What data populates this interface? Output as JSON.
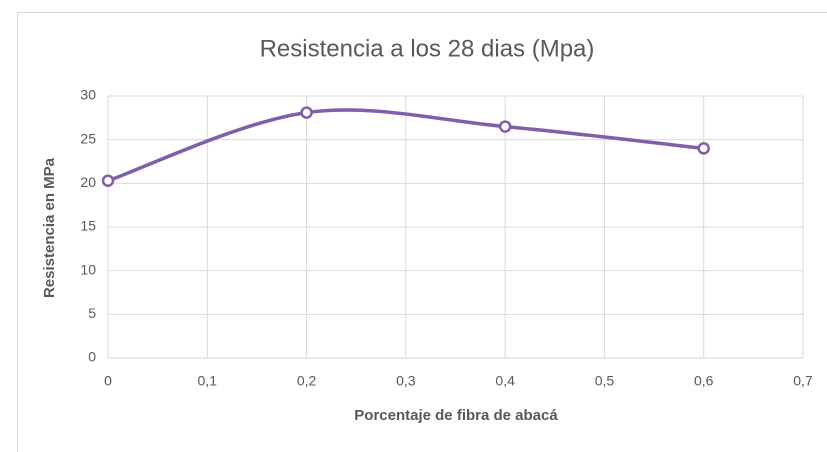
{
  "chart_data": {
    "type": "line",
    "title": "Resistencia a los 28 dias (Mpa)",
    "x_label": "Porcentaje de fibra de abacá",
    "y_label": "Resistencia en MPa",
    "x": [
      0,
      0.2,
      0.4,
      0.6
    ],
    "series": [
      {
        "name": "Resistencia",
        "color": "#7f5fa8",
        "values": [
          20.3,
          28.1,
          26.5,
          24.0
        ]
      }
    ],
    "xlim": [
      0,
      0.7
    ],
    "xticks": [
      0,
      {
        "value": 0.1,
        "label": "0,1"
      },
      {
        "value": 0.2,
        "label": "0,2"
      },
      {
        "value": 0.3,
        "label": "0,3"
      },
      {
        "value": 0.4,
        "label": "0,4"
      },
      {
        "value": 0.5,
        "label": "0,5"
      },
      {
        "value": 0.6,
        "label": "0,6"
      },
      {
        "value": 0.7,
        "label": "0,7"
      }
    ],
    "ylim": [
      0,
      30
    ],
    "yticks": [
      0,
      5,
      10,
      15,
      20,
      25,
      30
    ],
    "grid": true,
    "smooth": true
  }
}
